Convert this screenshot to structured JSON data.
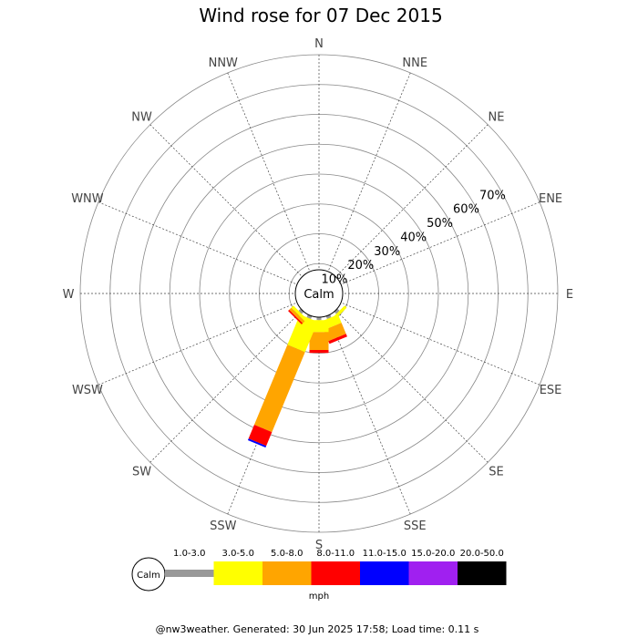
{
  "chart_data": {
    "type": "wind-rose",
    "title": "Wind rose for 07 Dec 2015",
    "directions": [
      "N",
      "NNE",
      "NE",
      "ENE",
      "E",
      "ESE",
      "SE",
      "SSE",
      "S",
      "SSW",
      "SW",
      "WSW",
      "W",
      "WNW",
      "NW",
      "NNW"
    ],
    "ring_labels": [
      "10%",
      "20%",
      "30%",
      "40%",
      "50%",
      "60%",
      "70%"
    ],
    "ring_values": [
      10,
      20,
      30,
      40,
      50,
      60,
      70
    ],
    "max_percent": 80,
    "calm_label": "Calm",
    "units": "mph",
    "bins": [
      {
        "label": "1.0-3.0",
        "color": "#999999"
      },
      {
        "label": "3.0-5.0",
        "color": "#ffff00"
      },
      {
        "label": "5.0-8.0",
        "color": "#ffa500"
      },
      {
        "label": "8.0-11.0",
        "color": "#ff0000"
      },
      {
        "label": "11.0-15.0",
        "color": "#0000ff"
      },
      {
        "label": "15.0-20.0",
        "color": "#a020f0"
      },
      {
        "label": "20.0-50.0",
        "color": "#000000"
      }
    ],
    "series": [
      {
        "direction": "SE",
        "values": [
          1,
          1,
          0,
          0,
          0,
          0,
          0
        ]
      },
      {
        "direction": "SSE",
        "values": [
          1,
          3,
          4,
          1,
          0,
          0,
          0
        ]
      },
      {
        "direction": "S",
        "values": [
          1,
          4,
          6,
          1,
          0,
          0,
          0
        ]
      },
      {
        "direction": "SSW",
        "values": [
          1,
          11,
          29,
          5,
          0.6,
          0,
          0
        ]
      },
      {
        "direction": "SW",
        "values": [
          1,
          1,
          1,
          0.5,
          0,
          0,
          0
        ]
      }
    ]
  },
  "footer": "@nw3weather. Generated: 30 Jun 2025 17:58; Load time: 0.11 s"
}
